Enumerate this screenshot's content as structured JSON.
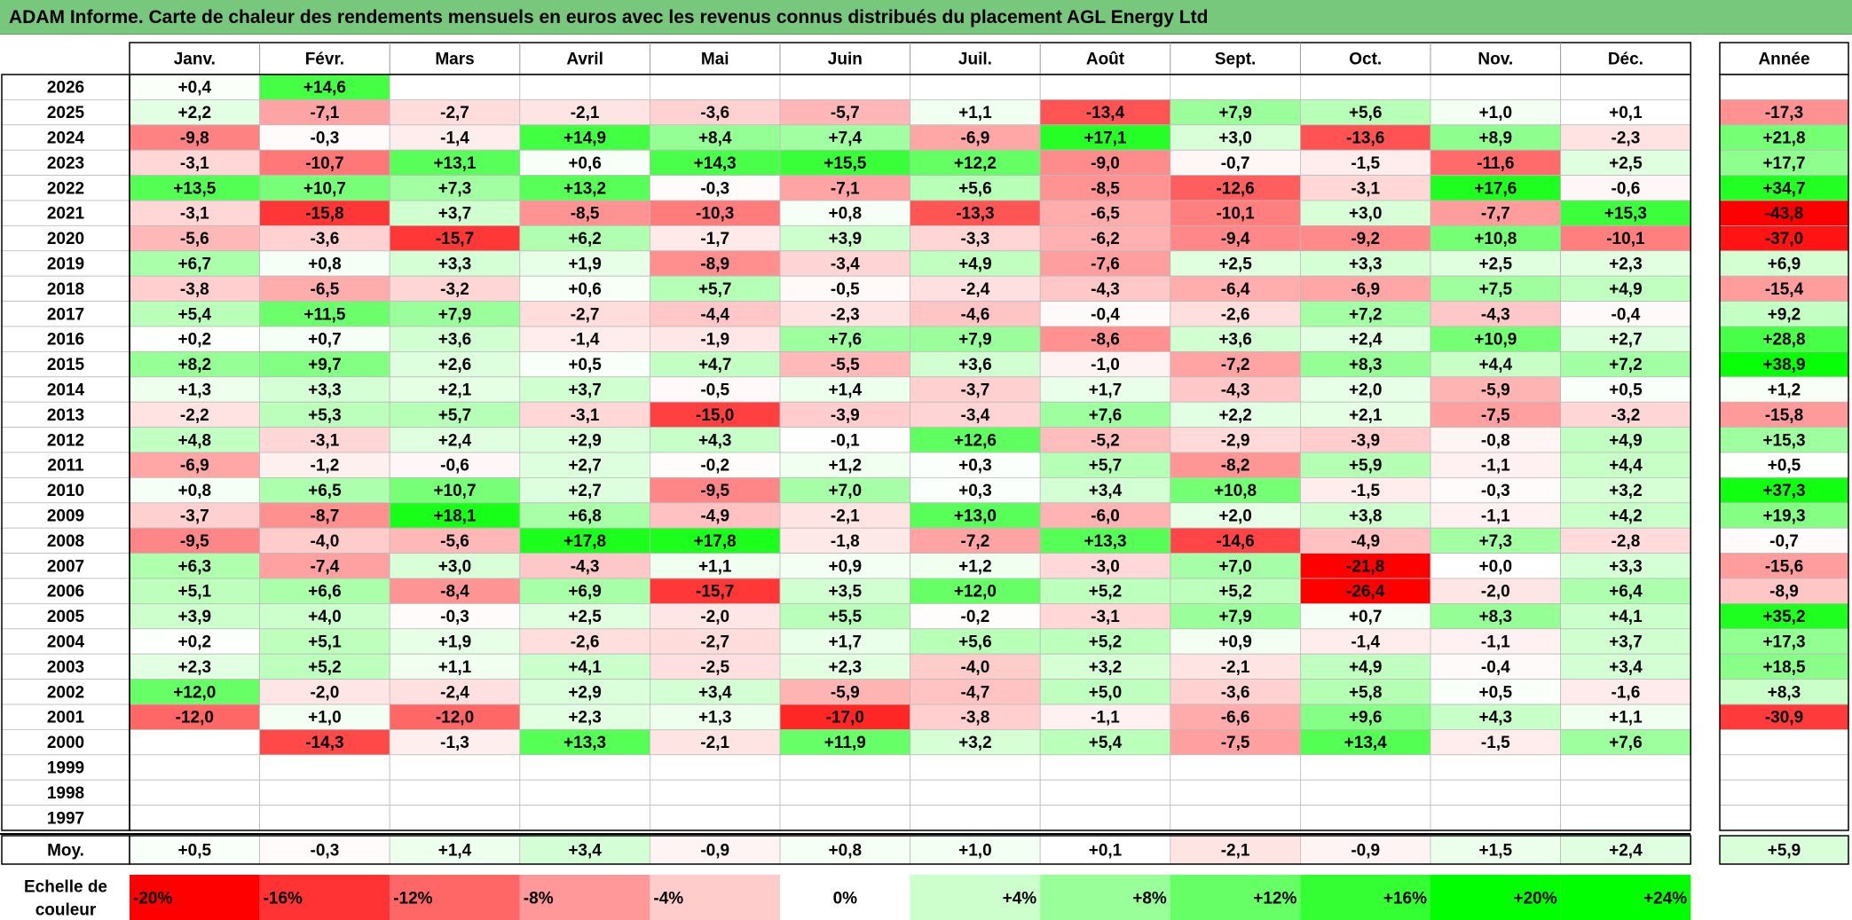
{
  "title": "ADAM Informe. Carte de chaleur des rendements mensuels en euros avec les revenus connus distribués du placement AGL Energy Ltd",
  "chart_data": {
    "type": "heatmap",
    "columns": [
      "Janv.",
      "Févr.",
      "Mars",
      "Avril",
      "Mai",
      "Juin",
      "Juil.",
      "Août",
      "Sept.",
      "Oct.",
      "Nov.",
      "Déc."
    ],
    "year_header": "Année",
    "rows": [
      {
        "year": "2026",
        "months": [
          "+0,4",
          "+14,6",
          "",
          "",
          "",
          "",
          "",
          "",
          "",
          "",
          "",
          ""
        ],
        "annual": ""
      },
      {
        "year": "2025",
        "months": [
          "+2,2",
          "-7,1",
          "-2,7",
          "-2,1",
          "-3,6",
          "-5,7",
          "+1,1",
          "-13,4",
          "+7,9",
          "+5,6",
          "+1,0",
          "+0,1"
        ],
        "annual": "-17,3"
      },
      {
        "year": "2024",
        "months": [
          "-9,8",
          "-0,3",
          "-1,4",
          "+14,9",
          "+8,4",
          "+7,4",
          "-6,9",
          "+17,1",
          "+3,0",
          "-13,6",
          "+8,9",
          "-2,3"
        ],
        "annual": "+21,8"
      },
      {
        "year": "2023",
        "months": [
          "-3,1",
          "-10,7",
          "+13,1",
          "+0,6",
          "+14,3",
          "+15,5",
          "+12,2",
          "-9,0",
          "-0,7",
          "-1,5",
          "-11,6",
          "+2,5"
        ],
        "annual": "+17,7"
      },
      {
        "year": "2022",
        "months": [
          "+13,5",
          "+10,7",
          "+7,3",
          "+13,2",
          "-0,3",
          "-7,1",
          "+5,6",
          "-8,5",
          "-12,6",
          "-3,1",
          "+17,6",
          "-0,6"
        ],
        "annual": "+34,7"
      },
      {
        "year": "2021",
        "months": [
          "-3,1",
          "-15,8",
          "+3,7",
          "-8,5",
          "-10,3",
          "+0,8",
          "-13,3",
          "-6,5",
          "-10,1",
          "+3,0",
          "-7,7",
          "+15,3"
        ],
        "annual": "-43,8"
      },
      {
        "year": "2020",
        "months": [
          "-5,6",
          "-3,6",
          "-15,7",
          "+6,2",
          "-1,7",
          "+3,9",
          "-3,3",
          "-6,2",
          "-9,4",
          "-9,2",
          "+10,8",
          "-10,1"
        ],
        "annual": "-37,0"
      },
      {
        "year": "2019",
        "months": [
          "+6,7",
          "+0,8",
          "+3,3",
          "+1,9",
          "-8,9",
          "-3,4",
          "+4,9",
          "-7,6",
          "+2,5",
          "+3,3",
          "+2,5",
          "+2,3"
        ],
        "annual": "+6,9"
      },
      {
        "year": "2018",
        "months": [
          "-3,8",
          "-6,5",
          "-3,2",
          "+0,6",
          "+5,7",
          "-0,5",
          "-2,4",
          "-4,3",
          "-6,4",
          "-6,9",
          "+7,5",
          "+4,9"
        ],
        "annual": "-15,4"
      },
      {
        "year": "2017",
        "months": [
          "+5,4",
          "+11,5",
          "+7,9",
          "-2,7",
          "-4,4",
          "-2,3",
          "-4,6",
          "-0,4",
          "-2,6",
          "+7,2",
          "-4,3",
          "-0,4"
        ],
        "annual": "+9,2"
      },
      {
        "year": "2016",
        "months": [
          "+0,2",
          "+0,7",
          "+3,6",
          "-1,4",
          "-1,9",
          "+7,6",
          "+7,9",
          "-8,6",
          "+3,6",
          "+2,4",
          "+10,9",
          "+2,7"
        ],
        "annual": "+28,8"
      },
      {
        "year": "2015",
        "months": [
          "+8,2",
          "+9,7",
          "+2,6",
          "+0,5",
          "+4,7",
          "-5,5",
          "+3,6",
          "-1,0",
          "-7,2",
          "+8,3",
          "+4,4",
          "+7,2"
        ],
        "annual": "+38,9"
      },
      {
        "year": "2014",
        "months": [
          "+1,3",
          "+3,3",
          "+2,1",
          "+3,7",
          "-0,5",
          "+1,4",
          "-3,7",
          "+1,7",
          "-4,3",
          "+2,0",
          "-5,9",
          "+0,5"
        ],
        "annual": "+1,2"
      },
      {
        "year": "2013",
        "months": [
          "-2,2",
          "+5,3",
          "+5,7",
          "-3,1",
          "-15,0",
          "-3,9",
          "-3,4",
          "+7,6",
          "+2,2",
          "+2,1",
          "-7,5",
          "-3,2"
        ],
        "annual": "-15,8"
      },
      {
        "year": "2012",
        "months": [
          "+4,8",
          "-3,1",
          "+2,4",
          "+2,9",
          "+4,3",
          "-0,1",
          "+12,6",
          "-5,2",
          "-2,9",
          "-3,9",
          "-0,8",
          "+4,9"
        ],
        "annual": "+15,3"
      },
      {
        "year": "2011",
        "months": [
          "-6,9",
          "-1,2",
          "-0,6",
          "+2,7",
          "-0,2",
          "+1,2",
          "+0,3",
          "+5,7",
          "-8,2",
          "+5,9",
          "-1,1",
          "+4,4"
        ],
        "annual": "+0,5"
      },
      {
        "year": "2010",
        "months": [
          "+0,8",
          "+6,5",
          "+10,7",
          "+2,7",
          "-9,5",
          "+7,0",
          "+0,3",
          "+3,4",
          "+10,8",
          "-1,5",
          "-0,3",
          "+3,2"
        ],
        "annual": "+37,3"
      },
      {
        "year": "2009",
        "months": [
          "-3,7",
          "-8,7",
          "+18,1",
          "+6,8",
          "-4,9",
          "-2,1",
          "+13,0",
          "-6,0",
          "+2,0",
          "+3,8",
          "-1,1",
          "+4,2"
        ],
        "annual": "+19,3"
      },
      {
        "year": "2008",
        "months": [
          "-9,5",
          "-4,0",
          "-5,6",
          "+17,8",
          "+17,8",
          "-1,8",
          "-7,2",
          "+13,3",
          "-14,6",
          "-4,9",
          "+7,3",
          "-2,8"
        ],
        "annual": "-0,7"
      },
      {
        "year": "2007",
        "months": [
          "+6,3",
          "-7,4",
          "+3,0",
          "-4,3",
          "+1,1",
          "+0,9",
          "+1,2",
          "-3,0",
          "+7,0",
          "-21,8",
          "+0,0",
          "+3,3"
        ],
        "annual": "-15,6"
      },
      {
        "year": "2006",
        "months": [
          "+5,1",
          "+6,6",
          "-8,4",
          "+6,9",
          "-15,7",
          "+3,5",
          "+12,0",
          "+5,2",
          "+5,2",
          "-26,4",
          "-2,0",
          "+6,4"
        ],
        "annual": "-8,9"
      },
      {
        "year": "2005",
        "months": [
          "+3,9",
          "+4,0",
          "-0,3",
          "+2,5",
          "-2,0",
          "+5,5",
          "-0,2",
          "-3,1",
          "+7,9",
          "+0,7",
          "+8,3",
          "+4,1"
        ],
        "annual": "+35,2"
      },
      {
        "year": "2004",
        "months": [
          "+0,2",
          "+5,1",
          "+1,9",
          "-2,6",
          "-2,7",
          "+1,7",
          "+5,6",
          "+5,2",
          "+0,9",
          "-1,4",
          "-1,1",
          "+3,7"
        ],
        "annual": "+17,3"
      },
      {
        "year": "2003",
        "months": [
          "+2,3",
          "+5,2",
          "+1,1",
          "+4,1",
          "-2,5",
          "+2,3",
          "-4,0",
          "+3,2",
          "-2,1",
          "+4,9",
          "-0,4",
          "+3,4"
        ],
        "annual": "+18,5"
      },
      {
        "year": "2002",
        "months": [
          "+12,0",
          "-2,0",
          "-2,4",
          "+2,9",
          "+3,4",
          "-5,9",
          "-4,7",
          "+5,0",
          "-3,6",
          "+5,8",
          "+0,5",
          "-1,6"
        ],
        "annual": "+8,3"
      },
      {
        "year": "2001",
        "months": [
          "-12,0",
          "+1,0",
          "-12,0",
          "+2,3",
          "+1,3",
          "-17,0",
          "-3,8",
          "-1,1",
          "-6,6",
          "+9,6",
          "+4,3",
          "+1,1"
        ],
        "annual": "-30,9"
      },
      {
        "year": "2000",
        "months": [
          "",
          "-14,3",
          "-1,3",
          "+13,3",
          "-2,1",
          "+11,9",
          "+3,2",
          "+5,4",
          "-7,5",
          "+13,4",
          "-1,5",
          "+7,6"
        ],
        "annual": ""
      },
      {
        "year": "1999",
        "months": [
          "",
          "",
          "",
          "",
          "",
          "",
          "",
          "",
          "",
          "",
          "",
          ""
        ],
        "annual": ""
      },
      {
        "year": "1998",
        "months": [
          "",
          "",
          "",
          "",
          "",
          "",
          "",
          "",
          "",
          "",
          "",
          ""
        ],
        "annual": ""
      },
      {
        "year": "1997",
        "months": [
          "",
          "",
          "",
          "",
          "",
          "",
          "",
          "",
          "",
          "",
          "",
          ""
        ],
        "annual": ""
      }
    ],
    "average": {
      "label": "Moy.",
      "months": [
        "+0,5",
        "-0,3",
        "+1,4",
        "+3,4",
        "-0,9",
        "+0,8",
        "+1,0",
        "+0,1",
        "-2,1",
        "-0,9",
        "+1,5",
        "+2,4"
      ],
      "annual": "+5,9"
    },
    "scale": {
      "label": "Echelle de couleur",
      "stops": [
        "-20%",
        "-16%",
        "-12%",
        "-8%",
        "-4%",
        "0%",
        "+4%",
        "+8%",
        "+12%",
        "+16%",
        "+20%",
        "+24%"
      ]
    },
    "colors": {
      "negative": "#ff0000",
      "neutral": "#ffffff",
      "positive": "#00ff00",
      "header": "#77c77c"
    }
  }
}
